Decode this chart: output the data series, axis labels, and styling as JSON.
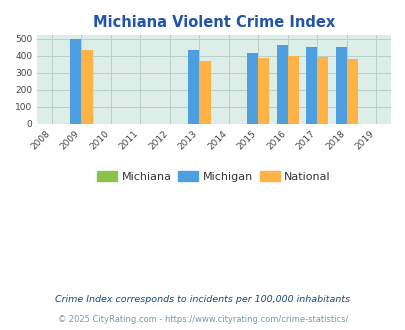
{
  "title": "Michiana Violent Crime Index",
  "title_color": "#2255aa",
  "years": [
    2008,
    2009,
    2010,
    2011,
    2012,
    2013,
    2014,
    2015,
    2016,
    2017,
    2018,
    2019
  ],
  "data_years": [
    2009,
    2013,
    2015,
    2016,
    2017,
    2018
  ],
  "michiana": [
    0,
    0,
    0,
    0,
    0,
    0
  ],
  "michigan": [
    499,
    432,
    415,
    462,
    451,
    451
  ],
  "national": [
    432,
    367,
    384,
    398,
    394,
    381
  ],
  "michigan_color": "#4d9fe0",
  "national_color": "#ffb347",
  "michiana_color": "#8bc34a",
  "bg_color": "#ddeee8",
  "grid_color": "#b8cfc8",
  "bar_width": 0.38,
  "ylim": [
    0,
    520
  ],
  "yticks": [
    0,
    100,
    200,
    300,
    400,
    500
  ],
  "xlabel": "",
  "ylabel": "",
  "legend_labels": [
    "Michiana",
    "Michigan",
    "National"
  ],
  "footnote1": "Crime Index corresponds to incidents per 100,000 inhabitants",
  "footnote2": "© 2025 CityRating.com - https://www.cityrating.com/crime-statistics/",
  "footnote1_color": "#1a4a6b",
  "footnote2_color": "#7799aa"
}
